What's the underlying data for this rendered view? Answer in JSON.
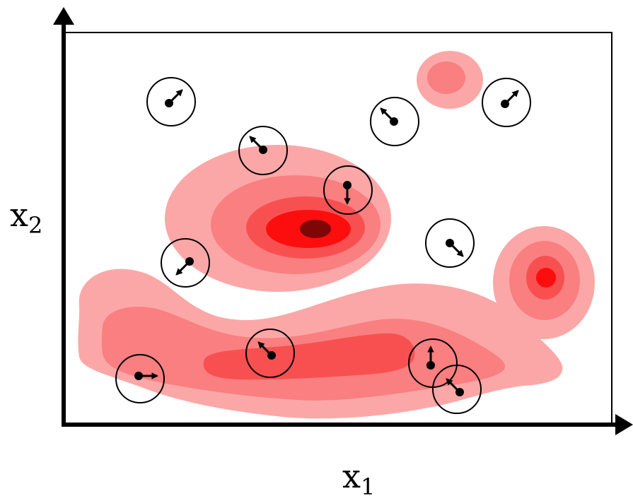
{
  "axes": {
    "x": {
      "base": "x",
      "subscript": "1"
    },
    "y": {
      "base": "x",
      "subscript": "2"
    }
  },
  "colors": {
    "level1": "#fca7a7",
    "level2": "#f97f80",
    "level3": "#f85050",
    "level4": "#fd0e0e",
    "level5": "#7f0606",
    "frame": "#000000",
    "particle": "#000000"
  },
  "particles": [
    {
      "name": "particle-1",
      "arrow_direction": "up-right"
    },
    {
      "name": "particle-2",
      "arrow_direction": "up-left"
    },
    {
      "name": "particle-3",
      "arrow_direction": "up-left"
    },
    {
      "name": "particle-4",
      "arrow_direction": "up-right"
    },
    {
      "name": "particle-5",
      "arrow_direction": "down"
    },
    {
      "name": "particle-6",
      "arrow_direction": "down-right"
    },
    {
      "name": "particle-7",
      "arrow_direction": "down-left"
    },
    {
      "name": "particle-8",
      "arrow_direction": "up-left"
    },
    {
      "name": "particle-9",
      "arrow_direction": "right"
    },
    {
      "name": "particle-10",
      "arrow_direction": "up"
    },
    {
      "name": "particle-11",
      "arrow_direction": "up-left"
    }
  ]
}
